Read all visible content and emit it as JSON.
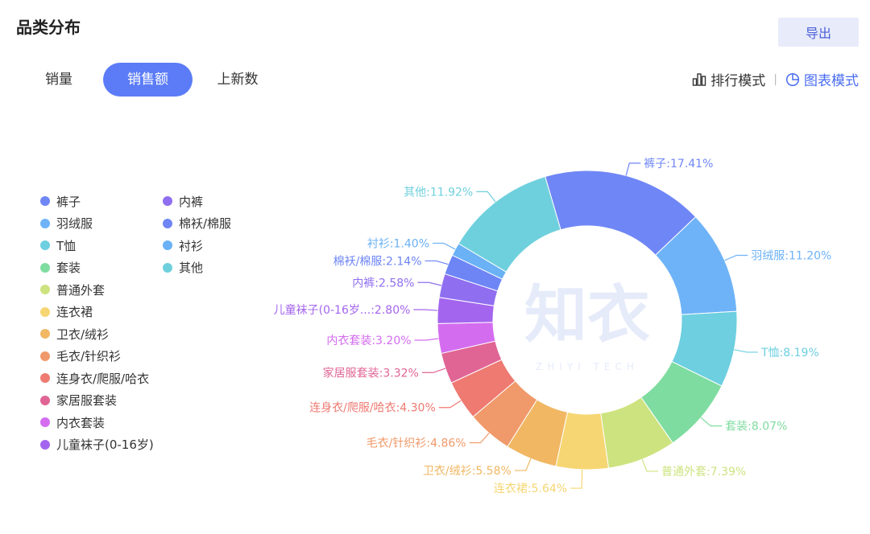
{
  "header": {
    "title": "品类分布",
    "export_label": "导出"
  },
  "tabs": [
    {
      "label": "销量",
      "active": false
    },
    {
      "label": "销售额",
      "active": true
    },
    {
      "label": "上新数",
      "active": false
    }
  ],
  "modes": [
    {
      "label": "排行模式",
      "icon": "bar-chart-icon",
      "active": false
    },
    {
      "label": "图表模式",
      "icon": "pie-chart-icon",
      "active": true
    }
  ],
  "watermark": {
    "main": "知衣",
    "sub": "ZHIYI TECH"
  },
  "chart_data": {
    "type": "pie",
    "donut": true,
    "legend_position": "left",
    "legend": [
      "裤子",
      "羽绒服",
      "T恤",
      "套装",
      "普通外套",
      "连衣裙",
      "卫衣/绒衫",
      "毛衣/针织衫",
      "连身衣/爬服/哈衣",
      "家居服套装",
      "内衣套装",
      "儿童袜子(0-16岁)",
      "内裤",
      "棉袄/棉服",
      "衬衫",
      "其他"
    ],
    "slices": [
      {
        "name": "裤子",
        "value": 17.41,
        "label": "裤子:17.41%",
        "color": "#6f86f6"
      },
      {
        "name": "羽绒服",
        "value": 11.2,
        "label": "羽绒服:11.20%",
        "color": "#6eb3f7"
      },
      {
        "name": "T恤",
        "value": 8.19,
        "label": "T恤:8.19%",
        "color": "#6dcfe0"
      },
      {
        "name": "套装",
        "value": 8.07,
        "label": "套装:8.07%",
        "color": "#7fdca0"
      },
      {
        "name": "普通外套",
        "value": 7.39,
        "label": "普通外套:7.39%",
        "color": "#cde37f"
      },
      {
        "name": "连衣裙",
        "value": 5.64,
        "label": "连衣裙:5.64%",
        "color": "#f6d672"
      },
      {
        "name": "卫衣/绒衫",
        "value": 5.58,
        "label": "卫衣/绒衫:5.58%",
        "color": "#f1b763"
      },
      {
        "name": "毛衣/针织衫",
        "value": 4.86,
        "label": "毛衣/针织衫:4.86%",
        "color": "#f0996a"
      },
      {
        "name": "连身衣/爬服/哈衣",
        "value": 4.3,
        "label": "连身衣/爬服/哈衣:4.30%",
        "color": "#ee7a72"
      },
      {
        "name": "家居服套装",
        "value": 3.32,
        "label": "家居服套装:3.32%",
        "color": "#e06595"
      },
      {
        "name": "内衣套装",
        "value": 3.2,
        "label": "内衣套装:3.20%",
        "color": "#d46cf0"
      },
      {
        "name": "儿童袜子(0-16岁)",
        "value": 2.8,
        "label": "儿童袜子(0-16岁...:2.80%",
        "color": "#a465ee"
      },
      {
        "name": "内裤",
        "value": 2.58,
        "label": "内裤:2.58%",
        "color": "#8f6ef0"
      },
      {
        "name": "棉袄/棉服",
        "value": 2.14,
        "label": "棉袄/棉服:2.14%",
        "color": "#6d85f5"
      },
      {
        "name": "衬衫",
        "value": 1.4,
        "label": "衬衫:1.40%",
        "color": "#6ab1f5"
      },
      {
        "name": "其他",
        "value": 11.92,
        "label": "其他:11.92%",
        "color": "#6fd0dd"
      }
    ]
  }
}
